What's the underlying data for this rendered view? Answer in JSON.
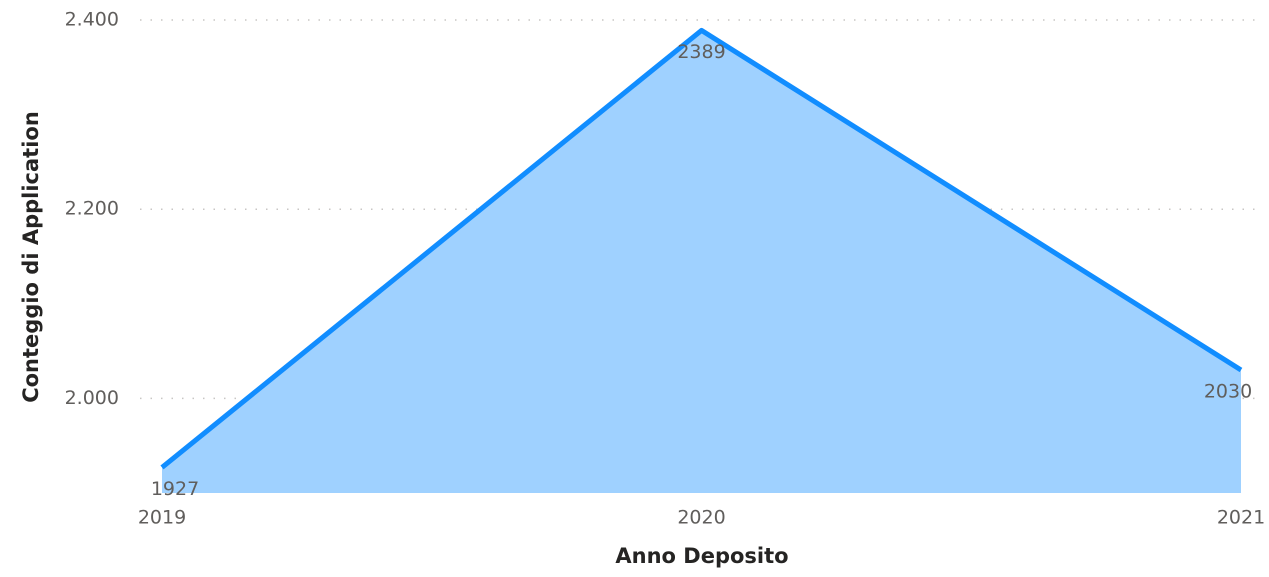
{
  "chart_data": {
    "type": "area",
    "x_label": "Anno Deposito",
    "y_label": "Conteggio di Application",
    "categories": [
      "2019",
      "2020",
      "2021"
    ],
    "series": [
      {
        "name": "Conteggio di Application",
        "color": "#118DFF",
        "fill": "#9FD1FF",
        "values": [
          1927,
          2389,
          2030
        ]
      }
    ],
    "ylim": [
      1900,
      2400
    ],
    "yticks": [
      {
        "value": 2000,
        "label": "2.000"
      },
      {
        "value": 2200,
        "label": "2.200"
      },
      {
        "value": 2400,
        "label": "2.400"
      }
    ],
    "grid": true
  }
}
